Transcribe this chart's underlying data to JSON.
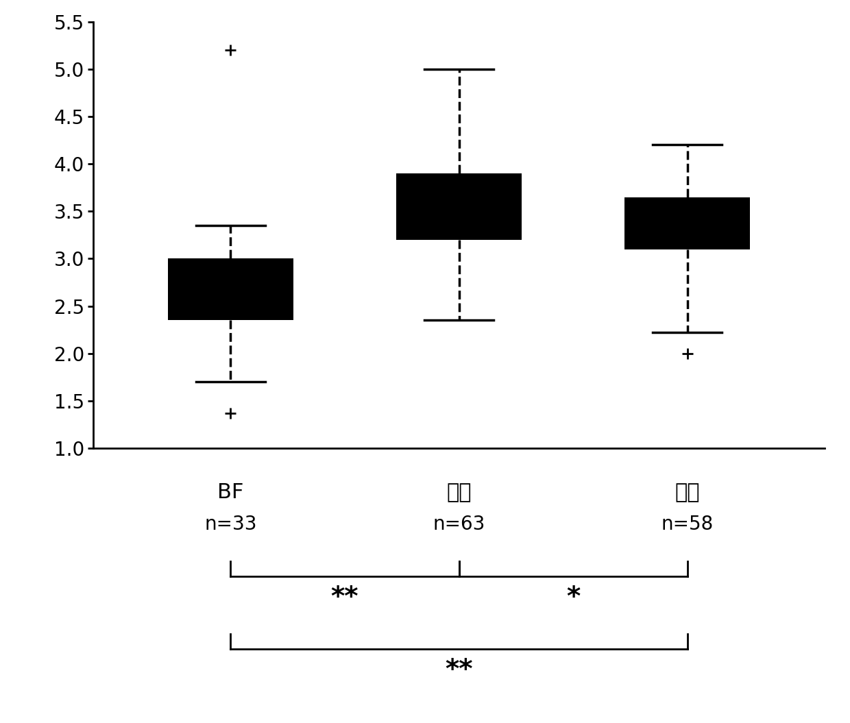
{
  "groups": [
    "BF",
    "对照",
    "测试"
  ],
  "n_labels": [
    "n=33",
    "n=63",
    "n=58"
  ],
  "boxes": [
    {
      "q1": 2.35,
      "median": 2.65,
      "q3": 3.0,
      "whisker_low": 1.7,
      "whisker_high": 3.35,
      "fliers": [
        1.37,
        5.2
      ]
    },
    {
      "q1": 3.2,
      "median": 3.55,
      "q3": 3.9,
      "whisker_low": 2.35,
      "whisker_high": 5.0,
      "fliers": []
    },
    {
      "q1": 3.1,
      "median": 3.6,
      "q3": 3.65,
      "whisker_low": 2.22,
      "whisker_high": 4.2,
      "fliers": [
        2.0
      ]
    }
  ],
  "ylim": [
    1.0,
    5.5
  ],
  "yticks": [
    1.0,
    1.5,
    2.0,
    2.5,
    3.0,
    3.5,
    4.0,
    4.5,
    5.0,
    5.5
  ],
  "box_color": "#000000",
  "whisker_color": "#000000",
  "flier_color": "#000000",
  "box_width": 0.55,
  "linewidth": 2.5,
  "cap_ratio": 0.55,
  "figsize": [
    12.4,
    10.55
  ],
  "dpi": 100,
  "tick_fontsize": 20,
  "label_fontsize": 22,
  "n_fontsize": 20,
  "sig_fontsize": 28
}
